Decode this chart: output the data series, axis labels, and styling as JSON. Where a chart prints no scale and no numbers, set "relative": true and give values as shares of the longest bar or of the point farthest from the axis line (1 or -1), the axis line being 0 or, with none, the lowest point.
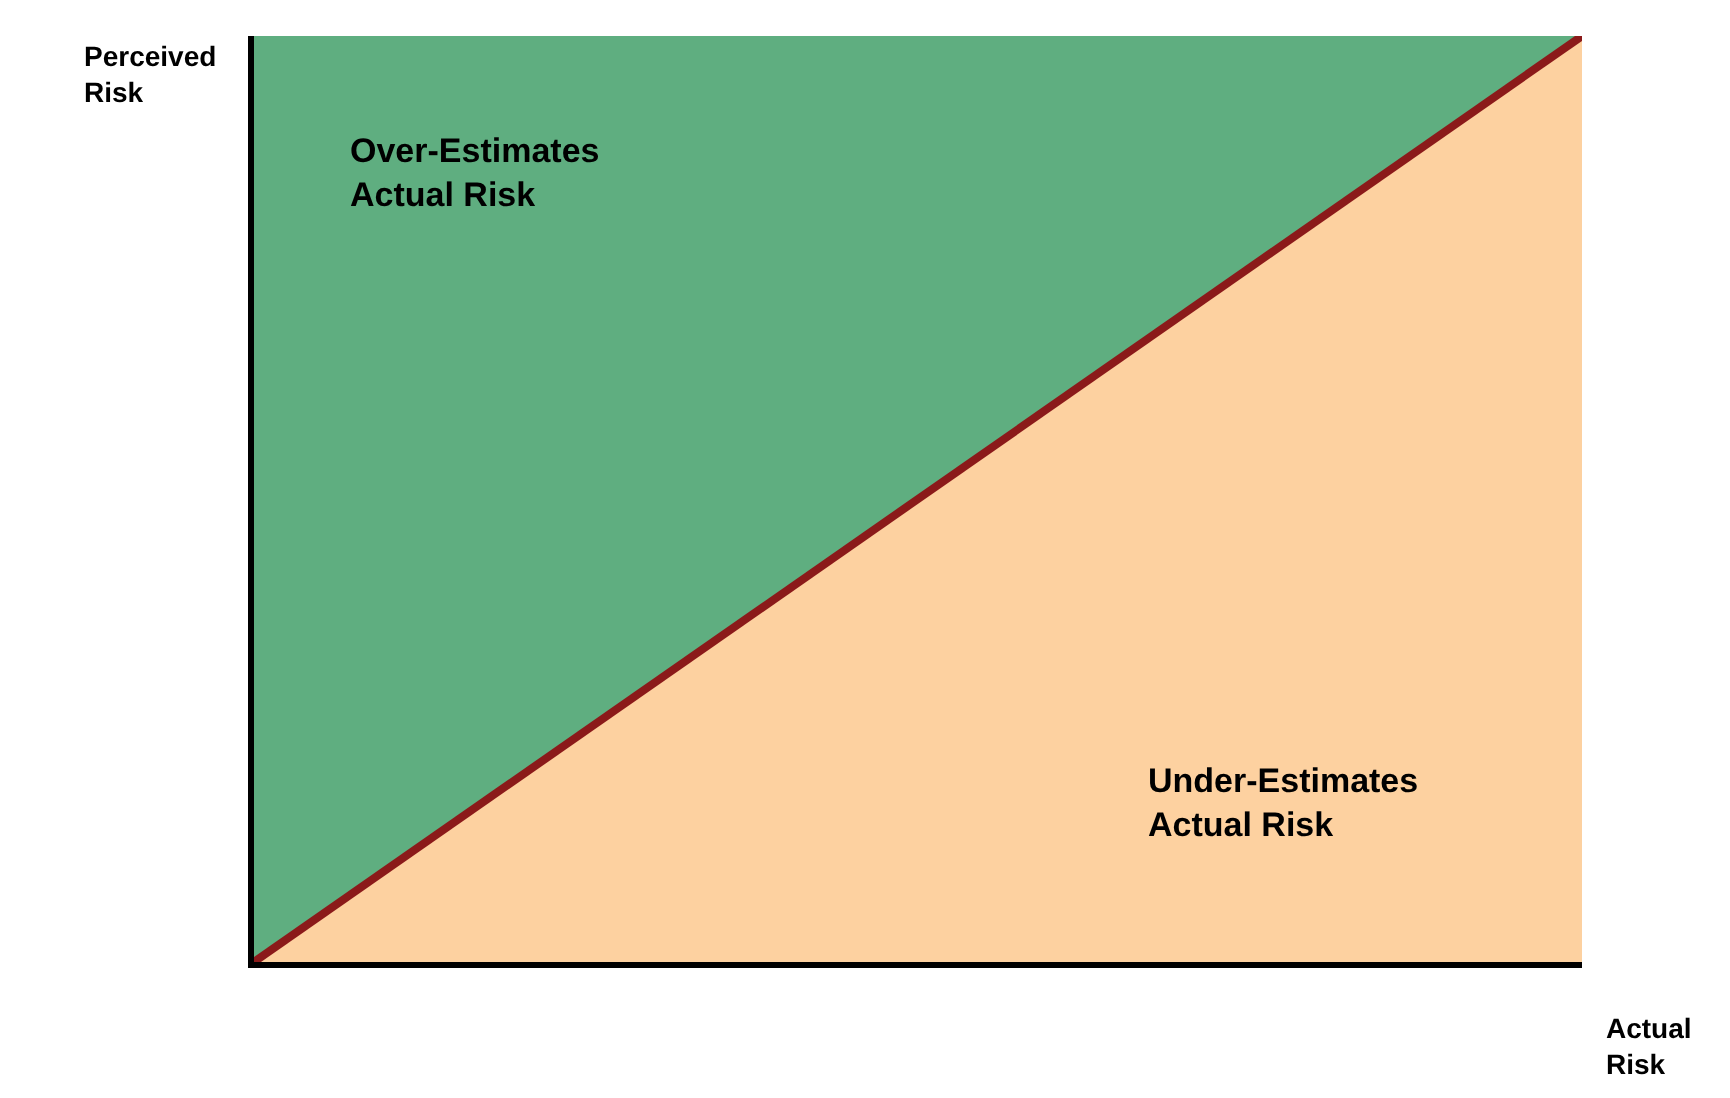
{
  "chart_data": {
    "type": "line",
    "relative": true,
    "xlabel": "Actual\nRisk",
    "ylabel": "Perceived\nRisk",
    "categories": [
      null,
      null
    ],
    "series": [
      {
        "color": "#8b1a1a",
        "values": [
          0,
          1
        ]
      }
    ],
    "annotations": [
      "Over-Estimates\nActual Risk",
      "Under-Estimates\nActual Risk"
    ],
    "line_style": "solid",
    "marker": "none"
  }
}
